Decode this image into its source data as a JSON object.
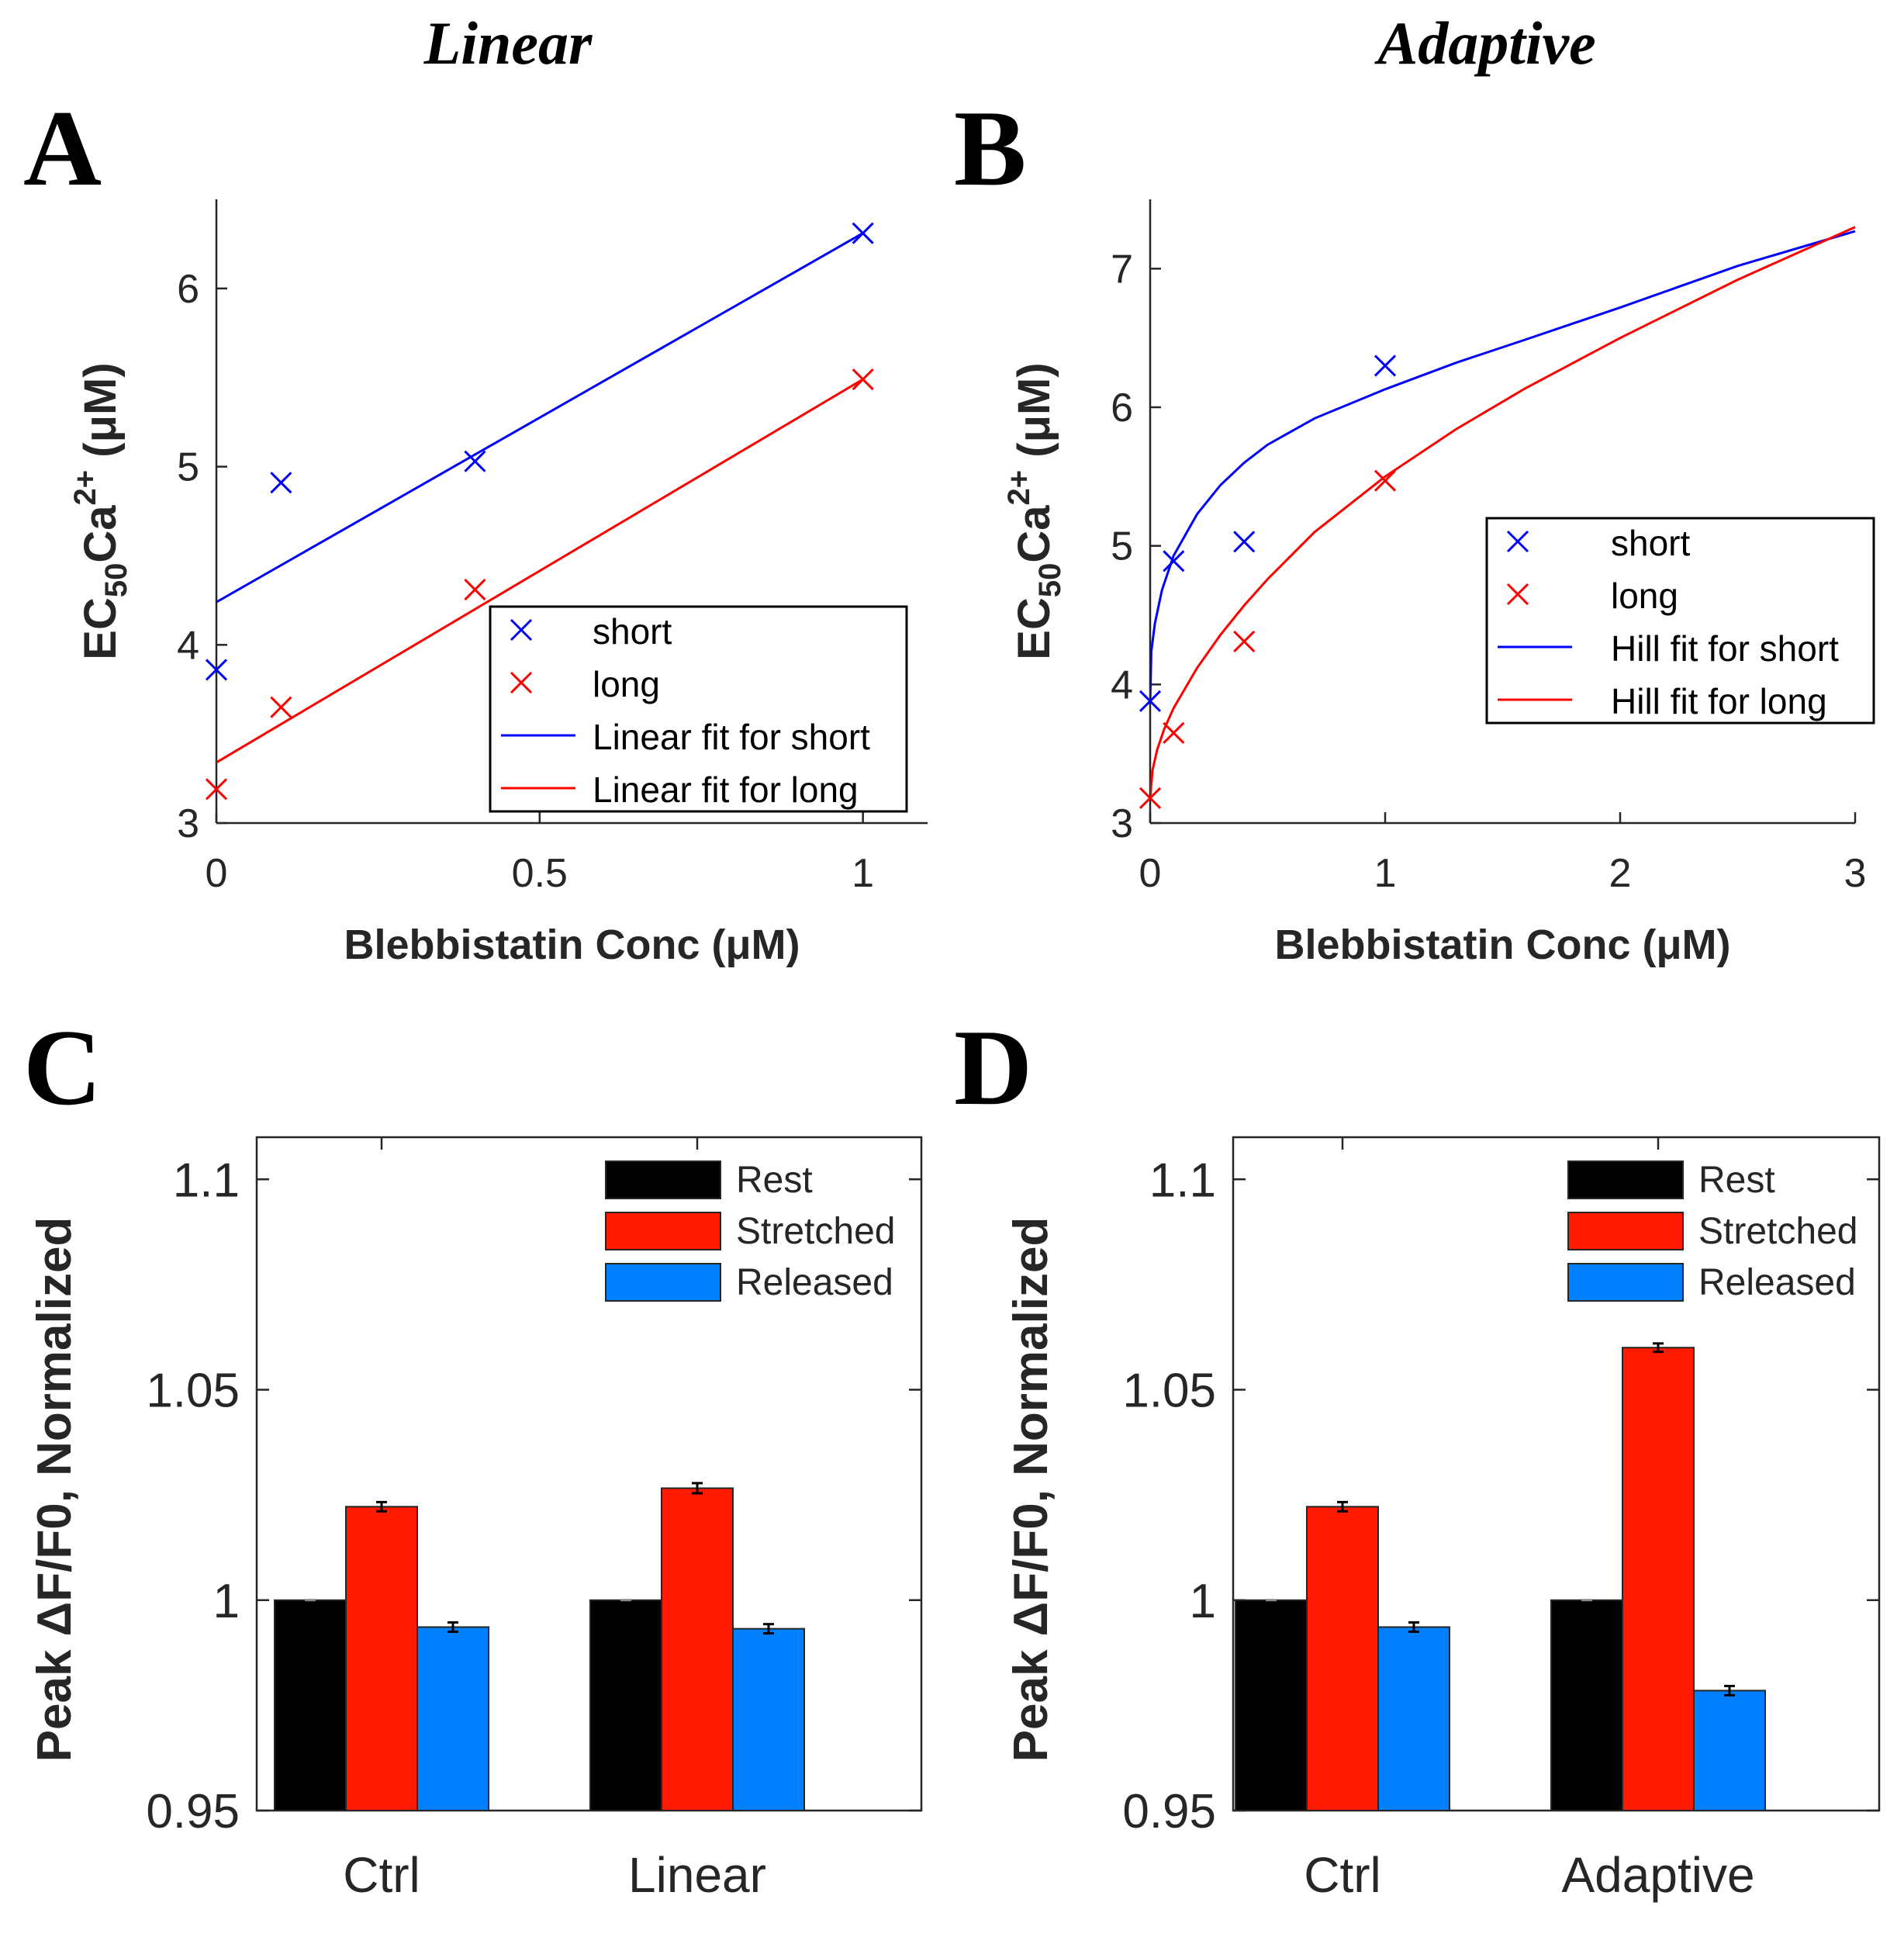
{
  "figure": {
    "title_left": "Linear",
    "title_right": "Adaptive",
    "panel_letters": [
      "A",
      "B",
      "C",
      "D"
    ]
  },
  "colors": {
    "short": "#0000ff",
    "long": "#ff0000",
    "rest": "#000000",
    "stretched": "#ff1a00",
    "released": "#0080ff"
  },
  "chart_data": [
    {
      "panel": "A",
      "type": "scatter",
      "title": "Linear",
      "xlabel": "Blebbistatin Conc (μM)",
      "ylabel_parts": {
        "base": "EC",
        "sub": "50",
        "mid": "Ca",
        "sup": "2+",
        "unit": " (μM)"
      },
      "xlim": [
        0,
        1.1
      ],
      "ylim": [
        3,
        6.5
      ],
      "xticks": [
        0,
        0.5,
        1
      ],
      "xtick_labels": [
        "0",
        "0.5",
        "1"
      ],
      "yticks": [
        3,
        4,
        5,
        6
      ],
      "ytick_labels": [
        "3",
        "4",
        "5",
        "6"
      ],
      "series": [
        {
          "name": "short",
          "kind": "points",
          "color": "#0000ff",
          "x": [
            0,
            0.1,
            0.4,
            1
          ],
          "y": [
            3.86,
            4.91,
            5.03,
            6.31
          ]
        },
        {
          "name": "long",
          "kind": "points",
          "color": "#ff0000",
          "x": [
            0,
            0.1,
            0.4,
            1
          ],
          "y": [
            3.19,
            3.65,
            4.31,
            5.49
          ]
        },
        {
          "name": "Linear fit for short",
          "kind": "line",
          "color": "#0000ff",
          "x": [
            0,
            1
          ],
          "y": [
            4.24,
            6.31
          ]
        },
        {
          "name": "Linear fit for long",
          "kind": "line",
          "color": "#ff0000",
          "x": [
            0,
            1
          ],
          "y": [
            3.34,
            5.49
          ]
        }
      ],
      "legend_location": "bottom-right"
    },
    {
      "panel": "B",
      "type": "scatter",
      "title": "Adaptive",
      "xlabel": "Blebbistatin Conc (μM)",
      "ylabel_parts": {
        "base": "EC",
        "sub": "50",
        "mid": "Ca",
        "sup": "2+",
        "unit": " (μM)"
      },
      "xlim": [
        0,
        3
      ],
      "ylim": [
        3,
        7.5
      ],
      "xticks": [
        0,
        1,
        2,
        3
      ],
      "xtick_labels": [
        "0",
        "1",
        "2",
        "3"
      ],
      "yticks": [
        3,
        4,
        5,
        6,
        7
      ],
      "ytick_labels": [
        "3",
        "4",
        "5",
        "6",
        "7"
      ],
      "series": [
        {
          "name": "short",
          "kind": "points",
          "color": "#0000ff",
          "x": [
            0,
            0.1,
            0.4,
            1
          ],
          "y": [
            3.88,
            4.89,
            5.03,
            6.3
          ]
        },
        {
          "name": "long",
          "kind": "points",
          "color": "#ff0000",
          "x": [
            0,
            0.1,
            0.4,
            1
          ],
          "y": [
            3.18,
            3.65,
            4.31,
            5.47
          ]
        },
        {
          "name": "Hill fit for short",
          "kind": "line",
          "color": "#0000ff",
          "x": [
            0,
            0.005,
            0.02,
            0.05,
            0.1,
            0.2,
            0.3,
            0.4,
            0.5,
            0.7,
            1,
            1.3,
            1.6,
            2,
            2.5,
            3
          ],
          "y": [
            3.88,
            4.24,
            4.44,
            4.68,
            4.93,
            5.23,
            5.44,
            5.6,
            5.73,
            5.92,
            6.13,
            6.32,
            6.49,
            6.72,
            7.02,
            7.27
          ]
        },
        {
          "name": "Hill fit for long",
          "kind": "line",
          "color": "#ff0000",
          "x": [
            0,
            0.01,
            0.03,
            0.06,
            0.1,
            0.2,
            0.3,
            0.4,
            0.5,
            0.7,
            1,
            1.3,
            1.6,
            2,
            2.5,
            3
          ],
          "y": [
            3.18,
            3.38,
            3.53,
            3.68,
            3.83,
            4.12,
            4.36,
            4.57,
            4.76,
            5.1,
            5.5,
            5.84,
            6.14,
            6.5,
            6.92,
            7.3
          ]
        }
      ],
      "legend_location": "middle-right"
    },
    {
      "panel": "C",
      "type": "bar",
      "ylabel": "Peak ΔF/F0, Normalized",
      "ylim": [
        0.95,
        1.11
      ],
      "yticks": [
        0.95,
        1,
        1.05,
        1.1
      ],
      "ytick_labels": [
        "0.95",
        "1",
        "1.05",
        "1.1"
      ],
      "categories": [
        "Ctrl",
        "Linear"
      ],
      "series": [
        {
          "name": "Rest",
          "color": "#000000",
          "values": [
            1.0,
            1.0
          ],
          "errors": [
            0.0,
            0.0
          ]
        },
        {
          "name": "Stretched",
          "color": "#ff1a00",
          "values": [
            1.0222,
            1.0266
          ],
          "errors": [
            0.0011,
            0.0012
          ]
        },
        {
          "name": "Released",
          "color": "#0080ff",
          "values": [
            0.9936,
            0.9932
          ],
          "errors": [
            0.0011,
            0.0011
          ]
        }
      ],
      "legend_location": "top-right"
    },
    {
      "panel": "D",
      "type": "bar",
      "ylabel": "Peak ΔF/F0, Normalized",
      "ylim": [
        0.95,
        1.11
      ],
      "yticks": [
        0.95,
        1,
        1.05,
        1.1
      ],
      "ytick_labels": [
        "0.95",
        "1",
        "1.05",
        "1.1"
      ],
      "categories": [
        "Ctrl",
        "Adaptive"
      ],
      "series": [
        {
          "name": "Rest",
          "color": "#000000",
          "values": [
            1.0,
            1.0
          ],
          "errors": [
            0.0,
            0.0
          ]
        },
        {
          "name": "Stretched",
          "color": "#ff1a00",
          "values": [
            1.0222,
            1.06
          ],
          "errors": [
            0.0011,
            0.001
          ]
        },
        {
          "name": "Released",
          "color": "#0080ff",
          "values": [
            0.9936,
            0.9785
          ],
          "errors": [
            0.0011,
            0.0011
          ]
        }
      ],
      "legend_location": "top-right"
    }
  ]
}
